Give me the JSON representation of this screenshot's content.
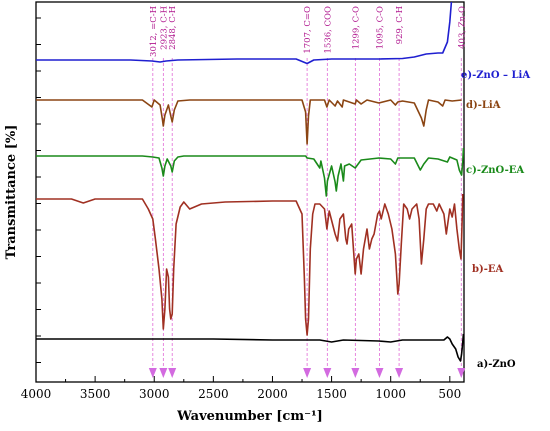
{
  "chart_data": {
    "type": "line",
    "title": "",
    "xlabel": "Wavenumber [cm⁻¹]",
    "ylabel": "Transmittance [%]",
    "xlim": [
      4000,
      380
    ],
    "x_ticks": [
      4000,
      3500,
      3000,
      2500,
      2000,
      1500,
      1000,
      500
    ],
    "x_tick_labels": [
      "4000",
      "3500",
      "3000",
      "2500",
      "2000",
      "1500",
      "1000",
      "500"
    ],
    "grid": false,
    "legend": "labels at right end of each curve",
    "annotations": [
      {
        "x": 3012,
        "text": "3012, =C-H"
      },
      {
        "x": 2923,
        "text": "2923, C-H"
      },
      {
        "x": 2848,
        "text": "2848, C-H"
      },
      {
        "x": 1707,
        "text": "1707, C=O"
      },
      {
        "x": 1536,
        "text": "1536, COO"
      },
      {
        "x": 1299,
        "text": "1299, C-O"
      },
      {
        "x": 1095,
        "text": "1095, C-O"
      },
      {
        "x": 929,
        "text": "929, C-H"
      },
      {
        "x": 403,
        "text": "403, Zn-O"
      }
    ],
    "series": [
      {
        "name": "e)-ZnO – LiA",
        "color": "#1f1fd0",
        "points": [
          [
            4000,
            2
          ],
          [
            3600,
            2
          ],
          [
            3200,
            2
          ],
          [
            3020,
            1
          ],
          [
            2950,
            0
          ],
          [
            2900,
            1
          ],
          [
            2800,
            2
          ],
          [
            2300,
            3
          ],
          [
            2000,
            3
          ],
          [
            1800,
            3
          ],
          [
            1707,
            -1.5
          ],
          [
            1650,
            2
          ],
          [
            1500,
            3
          ],
          [
            1100,
            3
          ],
          [
            900,
            3.5
          ],
          [
            800,
            5
          ],
          [
            700,
            8
          ],
          [
            600,
            9
          ],
          [
            560,
            9
          ],
          [
            520,
            20
          ],
          [
            500,
            40
          ],
          [
            480,
            70
          ],
          [
            460,
            110
          ],
          [
            440,
            160
          ],
          [
            420,
            210
          ],
          [
            405,
            250
          ],
          [
            395,
            270
          ],
          [
            385,
            255
          ]
        ]
      },
      {
        "name": "d)-LiA",
        "color": "#8b4513",
        "points": [
          [
            4000,
            0
          ],
          [
            3100,
            0
          ],
          [
            3020,
            -7
          ],
          [
            3000,
            0
          ],
          [
            2950,
            -5
          ],
          [
            2930,
            -20
          ],
          [
            2923,
            -26
          ],
          [
            2910,
            -15
          ],
          [
            2880,
            -5
          ],
          [
            2860,
            -16
          ],
          [
            2848,
            -22
          ],
          [
            2830,
            -10
          ],
          [
            2800,
            -1
          ],
          [
            2700,
            0
          ],
          [
            1750,
            0
          ],
          [
            1720,
            -12
          ],
          [
            1707,
            -44
          ],
          [
            1695,
            -16
          ],
          [
            1680,
            0
          ],
          [
            1560,
            0
          ],
          [
            1540,
            -7
          ],
          [
            1520,
            0
          ],
          [
            1470,
            -6
          ],
          [
            1450,
            -1
          ],
          [
            1410,
            -7
          ],
          [
            1400,
            0
          ],
          [
            1300,
            -4
          ],
          [
            1290,
            0
          ],
          [
            1250,
            -4
          ],
          [
            1200,
            0
          ],
          [
            1100,
            -3
          ],
          [
            1000,
            0
          ],
          [
            960,
            -5
          ],
          [
            940,
            -2
          ],
          [
            900,
            -1
          ],
          [
            800,
            -3
          ],
          [
            740,
            -18
          ],
          [
            720,
            -26
          ],
          [
            700,
            -10
          ],
          [
            680,
            0
          ],
          [
            600,
            -2
          ],
          [
            560,
            -6
          ],
          [
            540,
            0
          ],
          [
            480,
            -1
          ],
          [
            400,
            0
          ]
        ]
      },
      {
        "name": "c)-ZnO-EA",
        "color": "#1a8a1a",
        "points": [
          [
            4000,
            0
          ],
          [
            3100,
            0
          ],
          [
            3012,
            -1
          ],
          [
            2960,
            -2
          ],
          [
            2935,
            -12
          ],
          [
            2923,
            -20
          ],
          [
            2910,
            -10
          ],
          [
            2890,
            -3
          ],
          [
            2860,
            -10
          ],
          [
            2848,
            -16
          ],
          [
            2830,
            -5
          ],
          [
            2800,
            -1
          ],
          [
            2750,
            0
          ],
          [
            1800,
            0
          ],
          [
            1720,
            0
          ],
          [
            1707,
            -2
          ],
          [
            1650,
            -3
          ],
          [
            1600,
            -12
          ],
          [
            1590,
            -5
          ],
          [
            1560,
            -22
          ],
          [
            1545,
            -40
          ],
          [
            1535,
            -25
          ],
          [
            1500,
            -10
          ],
          [
            1470,
            -26
          ],
          [
            1460,
            -35
          ],
          [
            1445,
            -20
          ],
          [
            1420,
            -8
          ],
          [
            1400,
            -25
          ],
          [
            1390,
            -10
          ],
          [
            1350,
            -8
          ],
          [
            1300,
            -12
          ],
          [
            1250,
            -4
          ],
          [
            1100,
            -2
          ],
          [
            1000,
            -3
          ],
          [
            960,
            -8
          ],
          [
            940,
            -2
          ],
          [
            800,
            -2
          ],
          [
            750,
            -14
          ],
          [
            720,
            -8
          ],
          [
            680,
            -2
          ],
          [
            600,
            -3
          ],
          [
            520,
            -6
          ],
          [
            500,
            -1
          ],
          [
            440,
            -4
          ],
          [
            420,
            -14
          ],
          [
            400,
            -19
          ],
          [
            390,
            -5
          ],
          [
            385,
            8
          ]
        ]
      },
      {
        "name": "b)-EA",
        "color": "#a03022",
        "points": [
          [
            4000,
            0
          ],
          [
            3700,
            0
          ],
          [
            3600,
            -4
          ],
          [
            3500,
            0
          ],
          [
            3100,
            0
          ],
          [
            3050,
            -10
          ],
          [
            3012,
            -20
          ],
          [
            2990,
            -40
          ],
          [
            2960,
            -70
          ],
          [
            2935,
            -100
          ],
          [
            2923,
            -130
          ],
          [
            2910,
            -110
          ],
          [
            2895,
            -70
          ],
          [
            2880,
            -78
          ],
          [
            2870,
            -110
          ],
          [
            2860,
            -120
          ],
          [
            2848,
            -115
          ],
          [
            2835,
            -70
          ],
          [
            2815,
            -25
          ],
          [
            2780,
            -8
          ],
          [
            2750,
            -3
          ],
          [
            2700,
            -10
          ],
          [
            2600,
            -5
          ],
          [
            2400,
            -3
          ],
          [
            2000,
            -2
          ],
          [
            1800,
            -2
          ],
          [
            1750,
            -15
          ],
          [
            1730,
            -80
          ],
          [
            1720,
            -120
          ],
          [
            1707,
            -136
          ],
          [
            1695,
            -120
          ],
          [
            1680,
            -50
          ],
          [
            1660,
            -15
          ],
          [
            1640,
            -5
          ],
          [
            1600,
            -5
          ],
          [
            1560,
            -10
          ],
          [
            1540,
            -30
          ],
          [
            1520,
            -12
          ],
          [
            1470,
            -35
          ],
          [
            1450,
            -42
          ],
          [
            1430,
            -20
          ],
          [
            1400,
            -15
          ],
          [
            1380,
            -40
          ],
          [
            1370,
            -45
          ],
          [
            1355,
            -30
          ],
          [
            1330,
            -25
          ],
          [
            1300,
            -75
          ],
          [
            1290,
            -60
          ],
          [
            1270,
            -55
          ],
          [
            1250,
            -75
          ],
          [
            1230,
            -50
          ],
          [
            1200,
            -30
          ],
          [
            1180,
            -50
          ],
          [
            1160,
            -40
          ],
          [
            1140,
            -35
          ],
          [
            1110,
            -15
          ],
          [
            1095,
            -12
          ],
          [
            1080,
            -20
          ],
          [
            1050,
            -5
          ],
          [
            1020,
            -15
          ],
          [
            990,
            -30
          ],
          [
            960,
            -55
          ],
          [
            940,
            -95
          ],
          [
            929,
            -85
          ],
          [
            910,
            -45
          ],
          [
            890,
            -5
          ],
          [
            860,
            -10
          ],
          [
            840,
            -20
          ],
          [
            820,
            -10
          ],
          [
            780,
            -5
          ],
          [
            760,
            -20
          ],
          [
            740,
            -65
          ],
          [
            720,
            -40
          ],
          [
            700,
            -10
          ],
          [
            680,
            -5
          ],
          [
            640,
            -5
          ],
          [
            610,
            -12
          ],
          [
            590,
            -5
          ],
          [
            550,
            -15
          ],
          [
            530,
            -35
          ],
          [
            500,
            -10
          ],
          [
            480,
            -18
          ],
          [
            460,
            -5
          ],
          [
            440,
            -30
          ],
          [
            420,
            -50
          ],
          [
            405,
            -60
          ],
          [
            395,
            -20
          ],
          [
            390,
            5
          ]
        ]
      },
      {
        "name": "a)-ZnO",
        "color": "#000000",
        "points": [
          [
            4000,
            0
          ],
          [
            3000,
            0
          ],
          [
            2500,
            0
          ],
          [
            2000,
            -1
          ],
          [
            1600,
            -1
          ],
          [
            1500,
            -3
          ],
          [
            1400,
            -1
          ],
          [
            1100,
            -2
          ],
          [
            1000,
            -3
          ],
          [
            900,
            -1
          ],
          [
            700,
            -1
          ],
          [
            550,
            -1
          ],
          [
            520,
            2
          ],
          [
            500,
            0
          ],
          [
            480,
            -5
          ],
          [
            450,
            -10
          ],
          [
            430,
            -18
          ],
          [
            410,
            -22
          ],
          [
            400,
            -15
          ],
          [
            392,
            -5
          ],
          [
            385,
            5
          ]
        ]
      }
    ]
  }
}
